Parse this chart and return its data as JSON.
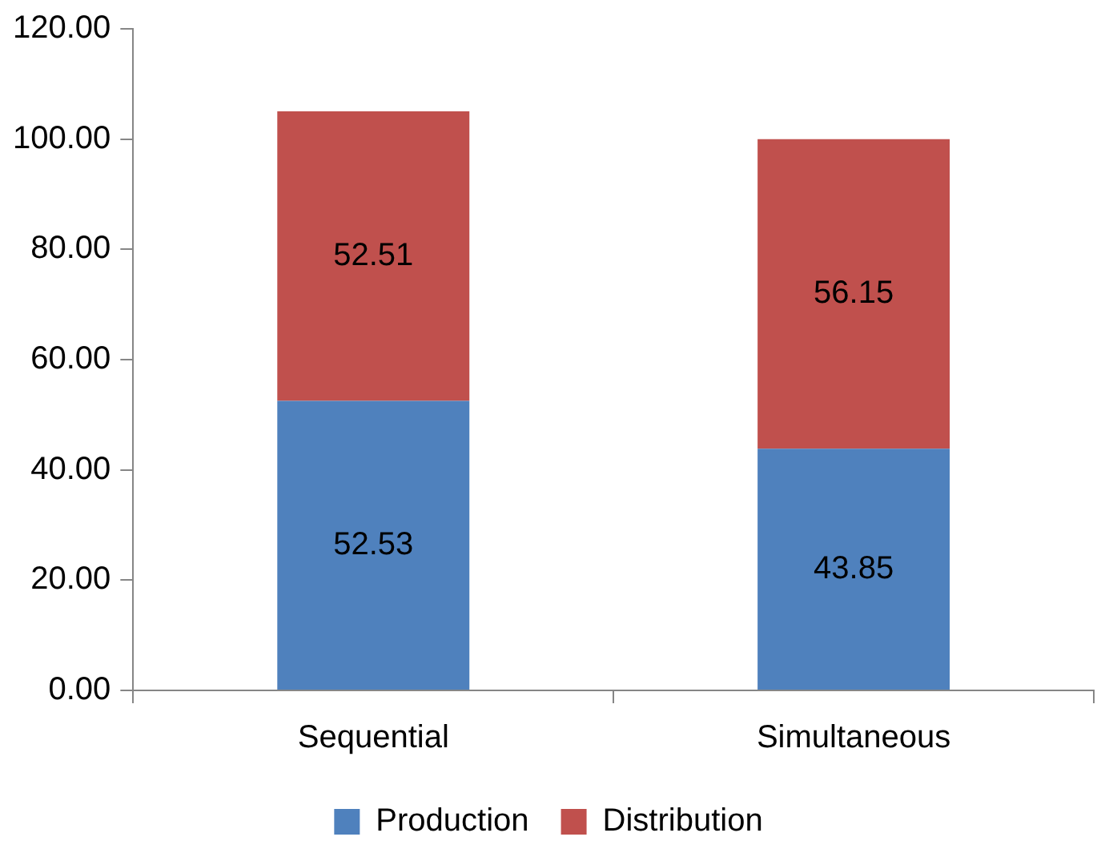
{
  "chart_data": {
    "type": "bar",
    "stacked": true,
    "categories": [
      "Sequential",
      "Simultaneous"
    ],
    "series": [
      {
        "name": "Production",
        "color": "#4f81bd",
        "values": [
          52.53,
          43.85
        ]
      },
      {
        "name": "Distribution",
        "color": "#c0504d",
        "values": [
          52.51,
          56.15
        ]
      }
    ],
    "ylim": [
      0,
      120
    ],
    "yticks": [
      {
        "value": 0,
        "label": "0.00"
      },
      {
        "value": 20,
        "label": "20.00"
      },
      {
        "value": 40,
        "label": "40.00"
      },
      {
        "value": 60,
        "label": "60.00"
      },
      {
        "value": 80,
        "label": "80.00"
      },
      {
        "value": 100,
        "label": "100.00"
      },
      {
        "value": 120,
        "label": "120.00"
      }
    ],
    "data_labels": true,
    "legend": "bottom",
    "grid": false
  }
}
